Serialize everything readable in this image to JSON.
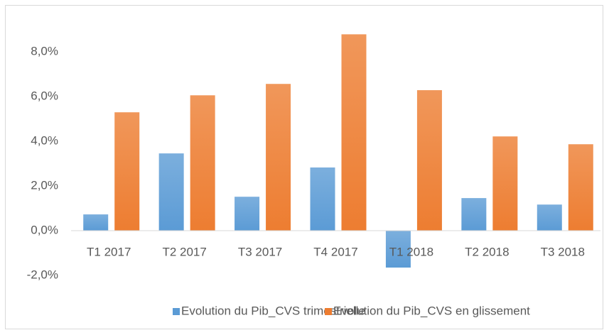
{
  "chart_data": {
    "type": "bar",
    "categories": [
      "T1 2017",
      "T2 2017",
      "T3 2017",
      "T4 2017",
      "T1 2018",
      "T2 2018",
      "T3 2018"
    ],
    "series": [
      {
        "name": "Evolution du Pib_CVS trimestrielle",
        "color": "#5b9bd5",
        "values": [
          0.73,
          3.46,
          1.52,
          2.83,
          -1.65,
          1.46,
          1.17
        ]
      },
      {
        "name": "Evolution du Pib_CVS en glissement",
        "color": "#ed7d31",
        "values": [
          5.3,
          6.06,
          6.57,
          8.79,
          6.29,
          4.22,
          3.87
        ]
      }
    ],
    "ylim": [
      -2,
      9.5
    ],
    "yticks": [
      {
        "value": -2,
        "label": "-2,0%"
      },
      {
        "value": 0,
        "label": "0,0%"
      },
      {
        "value": 2,
        "label": "2,0%"
      },
      {
        "value": 4,
        "label": "4,0%"
      },
      {
        "value": 6,
        "label": "6,0%"
      },
      {
        "value": 8,
        "label": "8,0%"
      }
    ],
    "grid": false,
    "legend": "bottom"
  }
}
